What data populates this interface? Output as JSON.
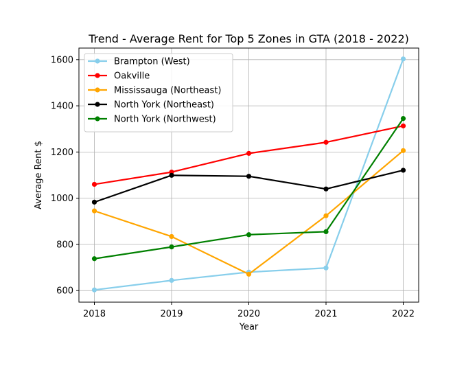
{
  "chart_data": {
    "type": "line",
    "title": "Trend - Average  Rent for Top 5 Zones in GTA (2018 - 2022)",
    "xlabel": "Year",
    "ylabel": "Average Rent $",
    "x": [
      2018,
      2019,
      2020,
      2021,
      2022
    ],
    "x_tick_labels": [
      "2018",
      "2019",
      "2020",
      "2021",
      "2022"
    ],
    "y_ticks": [
      600,
      800,
      1000,
      1200,
      1400,
      1600
    ],
    "y_tick_labels": [
      "600",
      "800",
      "1000",
      "1200",
      "1400",
      "1600"
    ],
    "xlim": [
      2017.8,
      2022.2
    ],
    "ylim": [
      550,
      1650
    ],
    "grid": true,
    "legend_position": "top-left",
    "series": [
      {
        "name": "Brampton (West)",
        "color": "#87ceeb",
        "values": [
          603,
          644,
          680,
          698,
          1603
        ]
      },
      {
        "name": "Oakville",
        "color": "#ff0000",
        "values": [
          1060,
          1113,
          1194,
          1242,
          1313
        ]
      },
      {
        "name": "Mississauga (Northeast)",
        "color": "#ffa500",
        "values": [
          945,
          834,
          671,
          924,
          1206
        ]
      },
      {
        "name": "North York (Northeast)",
        "color": "#000000",
        "values": [
          983,
          1099,
          1095,
          1040,
          1121
        ]
      },
      {
        "name": "North York (Northwest)",
        "color": "#008000",
        "values": [
          738,
          789,
          842,
          855,
          1345
        ]
      }
    ]
  }
}
